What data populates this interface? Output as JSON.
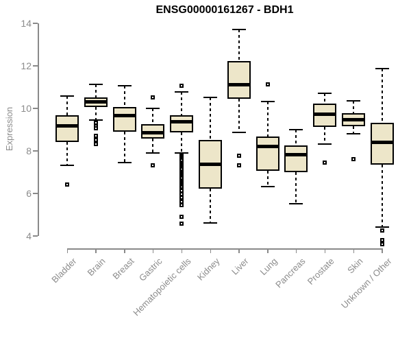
{
  "page": {
    "title": "ENSG00000161267 - BDH1"
  },
  "colors": {
    "box_fill": "#EDE6C9",
    "box_border": "#000000",
    "median": "#000000",
    "whisker": "#000000",
    "outlier": "#000000",
    "axis": "#898989",
    "label": "#8b8b8b",
    "title": "#000000",
    "background": "#ffffff"
  },
  "chart_data": {
    "type": "boxplot",
    "title": "ENSG00000161267 - BDH1",
    "xlabel": "",
    "ylabel": "Expression",
    "ylim": [
      4,
      14
    ],
    "yticks": [
      4,
      6,
      8,
      10,
      12,
      14
    ],
    "grid": false,
    "legend": false,
    "categories": [
      "Bladder",
      "Brain",
      "Breast",
      "Gastric",
      "Hematopoietic cells",
      "Kidney",
      "Liver",
      "Lung",
      "Pancreas",
      "Prostate",
      "Skin",
      "Unknown / Other"
    ],
    "boxes": [
      {
        "category": "Bladder",
        "whisker_low": 7.3,
        "q1": 8.4,
        "median": 9.15,
        "q3": 9.65,
        "whisker_high": 10.55,
        "outliers": [
          6.4
        ]
      },
      {
        "category": "Brain",
        "whisker_low": 9.45,
        "q1": 10.05,
        "median": 10.3,
        "q3": 10.5,
        "whisker_high": 11.1,
        "outliers": [
          9.3,
          9.15,
          9.05,
          8.7,
          8.5,
          8.3
        ]
      },
      {
        "category": "Breast",
        "whisker_low": 7.45,
        "q1": 8.9,
        "median": 9.65,
        "q3": 10.05,
        "whisker_high": 11.05,
        "outliers": []
      },
      {
        "category": "Gastric",
        "whisker_low": 7.9,
        "q1": 8.55,
        "median": 8.85,
        "q3": 9.25,
        "whisker_high": 10.0,
        "outliers": [
          10.5,
          7.3
        ]
      },
      {
        "category": "Hematopoietic cells",
        "whisker_low": 7.9,
        "q1": 8.85,
        "median": 9.35,
        "q3": 9.65,
        "whisker_high": 10.75,
        "outliers": [
          11.05,
          7.8,
          7.73,
          7.66,
          7.59,
          7.52,
          7.45,
          7.38,
          7.31,
          7.24,
          7.17,
          7.1,
          7.03,
          6.96,
          6.89,
          6.82,
          6.75,
          6.68,
          6.61,
          6.54,
          6.47,
          6.4,
          6.33,
          6.26,
          6.19,
          6.12,
          5.95,
          5.8,
          5.6,
          5.45,
          4.9,
          4.55
        ]
      },
      {
        "category": "Kidney",
        "whisker_low": 4.6,
        "q1": 6.2,
        "median": 7.35,
        "q3": 8.5,
        "whisker_high": 10.5,
        "outliers": []
      },
      {
        "category": "Liver",
        "whisker_low": 8.85,
        "q1": 10.45,
        "median": 11.1,
        "q3": 12.2,
        "whisker_high": 13.7,
        "outliers": [
          7.75,
          7.3
        ]
      },
      {
        "category": "Lung",
        "whisker_low": 6.3,
        "q1": 7.05,
        "median": 8.2,
        "q3": 8.65,
        "whisker_high": 10.3,
        "outliers": [
          11.1
        ]
      },
      {
        "category": "Pancreas",
        "whisker_low": 5.5,
        "q1": 7.0,
        "median": 7.8,
        "q3": 8.25,
        "whisker_high": 9.0,
        "outliers": []
      },
      {
        "category": "Prostate",
        "whisker_low": 8.3,
        "q1": 9.1,
        "median": 9.7,
        "q3": 10.2,
        "whisker_high": 10.7,
        "outliers": [
          7.45
        ]
      },
      {
        "category": "Skin",
        "whisker_low": 8.8,
        "q1": 9.15,
        "median": 9.45,
        "q3": 9.75,
        "whisker_high": 10.35,
        "outliers": [
          7.6
        ]
      },
      {
        "category": "Unknown / Other",
        "whisker_low": 4.4,
        "q1": 7.35,
        "median": 8.4,
        "q3": 9.3,
        "whisker_high": 11.85,
        "outliers": [
          4.25,
          3.8,
          3.6
        ]
      }
    ]
  }
}
